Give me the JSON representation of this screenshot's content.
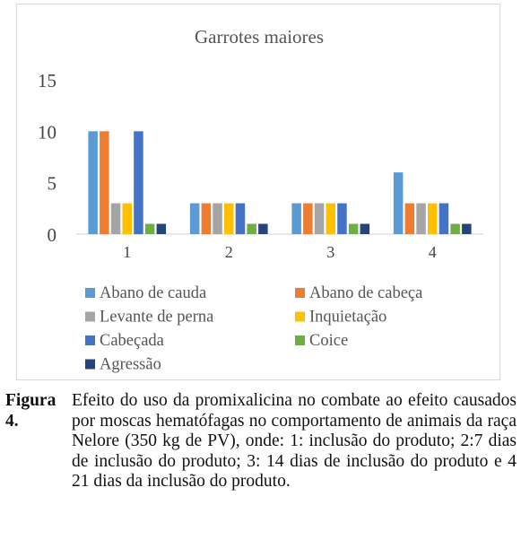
{
  "chart_data": {
    "type": "bar",
    "title": "Garrotes maiores",
    "categories": [
      "1",
      "2",
      "3",
      "4"
    ],
    "series": [
      {
        "name": "Abano de cauda",
        "values": [
          10,
          3,
          3,
          6
        ],
        "color": "#5b9bd5"
      },
      {
        "name": "Abano de cabeça",
        "values": [
          10,
          3,
          3,
          3
        ],
        "color": "#ed7d31"
      },
      {
        "name": "Levante de perna",
        "values": [
          3,
          3,
          3,
          3
        ],
        "color": "#a5a5a5"
      },
      {
        "name": "Inquietação",
        "values": [
          3,
          3,
          3,
          3
        ],
        "color": "#ffc000"
      },
      {
        "name": "Cabeçada",
        "values": [
          10,
          3,
          3,
          3
        ],
        "color": "#4472c4"
      },
      {
        "name": "Coice",
        "values": [
          1,
          1,
          1,
          1
        ],
        "color": "#70ad47"
      },
      {
        "name": "Agressão",
        "values": [
          1,
          1,
          1,
          1
        ],
        "color": "#264478"
      }
    ],
    "y_ticks": [
      0,
      5,
      10,
      15
    ],
    "ylim": [
      0,
      15
    ],
    "xlabel": "",
    "ylabel": "",
    "grid": false,
    "legend_position": "bottom"
  },
  "caption": {
    "label": "Figura 4.",
    "text": "Efeito do uso da promixalicina no combate ao efeito causados por moscas hematófagas no comportamento de animais da raça Nelore (350 kg de PV), onde: 1: inclusão do produto; 2:7 dias de inclusão do produto; 3: 14 dias de inclusão do produto e 4 21 dias da inclusão do produto."
  }
}
